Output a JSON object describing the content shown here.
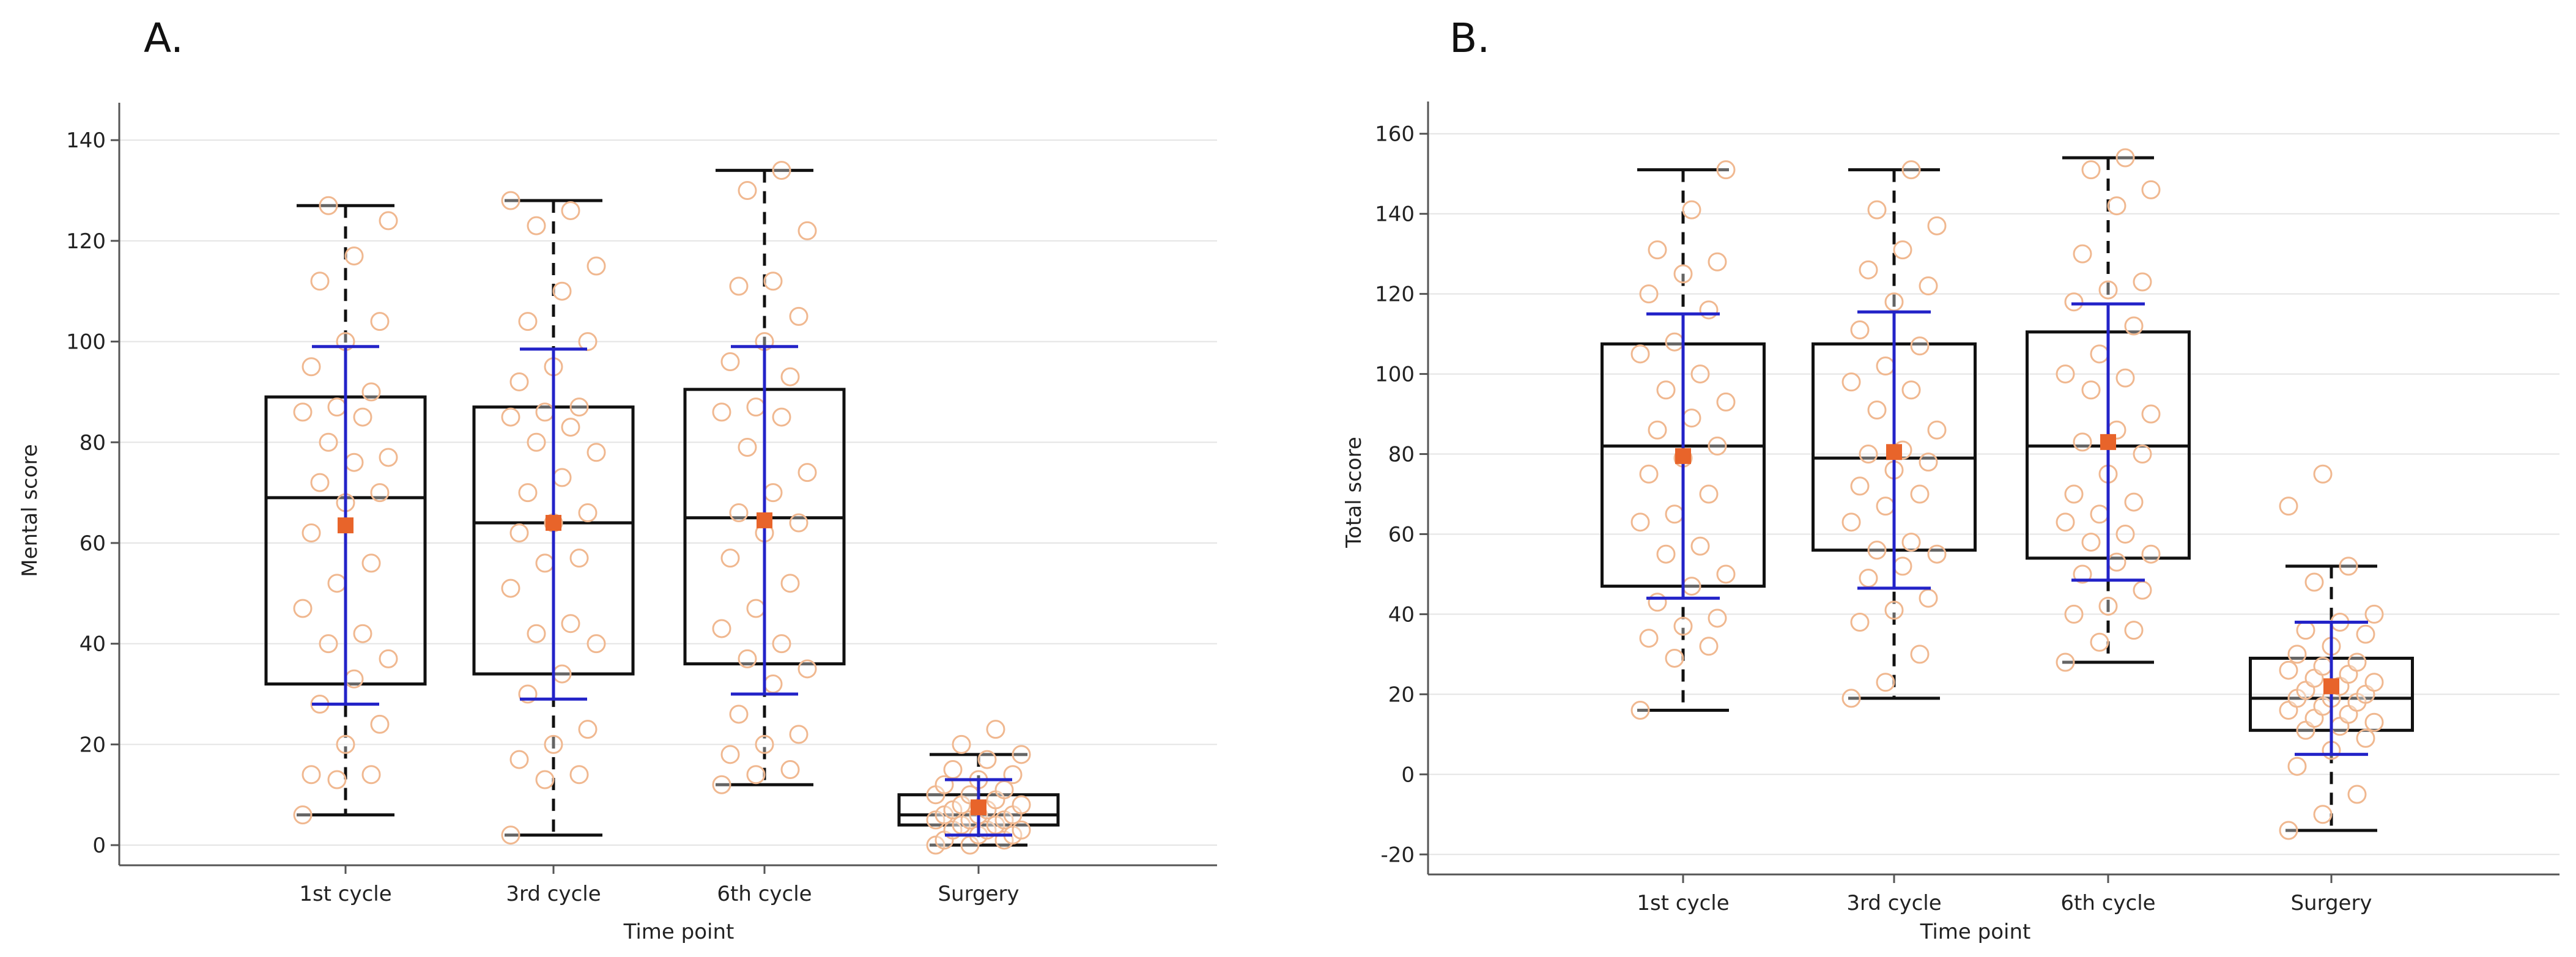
{
  "panels": [
    "A.",
    "B."
  ],
  "colors": {
    "box": "#111111",
    "sd_bar": "#2323c8",
    "point": "#f0b890",
    "mean": "#e8642a",
    "grid": "#e4e4e4"
  },
  "chart_data": [
    {
      "type": "box",
      "panel_label": "A.",
      "title": "",
      "xlabel": "Time point",
      "ylabel": "Mental score",
      "ylim": [
        -4,
        145
      ],
      "yticks": [
        0,
        20,
        40,
        60,
        80,
        100,
        120,
        140
      ],
      "grid": true,
      "categories": [
        "1st cycle",
        "3rd cycle",
        "6th cycle",
        "Surgery"
      ],
      "series": [
        {
          "name": "1st cycle",
          "min": 6,
          "q1": 32,
          "median": 69,
          "q3": 89,
          "max": 127,
          "mean": 63.5,
          "sd_low": 28,
          "sd_high": 99,
          "points": [
            6,
            13,
            14,
            14,
            20,
            24,
            28,
            33,
            37,
            40,
            42,
            47,
            52,
            56,
            62,
            68,
            70,
            72,
            76,
            77,
            80,
            85,
            86,
            87,
            90,
            95,
            100,
            104,
            112,
            117,
            124,
            127
          ]
        },
        {
          "name": "3rd cycle",
          "min": 2,
          "q1": 34,
          "median": 64,
          "q3": 87,
          "max": 128,
          "mean": 64,
          "sd_low": 29,
          "sd_high": 98.5,
          "points": [
            2,
            13,
            14,
            17,
            20,
            23,
            30,
            34,
            40,
            42,
            44,
            51,
            56,
            57,
            62,
            64,
            66,
            70,
            73,
            78,
            80,
            83,
            85,
            86,
            87,
            92,
            95,
            100,
            104,
            110,
            115,
            123,
            126,
            128
          ]
        },
        {
          "name": "6th cycle",
          "min": 12,
          "q1": 36,
          "median": 65,
          "q3": 90.5,
          "max": 134,
          "mean": 64.5,
          "sd_low": 30,
          "sd_high": 99,
          "points": [
            12,
            14,
            15,
            18,
            20,
            22,
            26,
            32,
            35,
            37,
            40,
            43,
            47,
            52,
            57,
            62,
            64,
            66,
            70,
            74,
            79,
            85,
            86,
            87,
            93,
            96,
            100,
            105,
            111,
            112,
            122,
            130,
            134
          ]
        },
        {
          "name": "Surgery",
          "min": 0,
          "q1": 4,
          "median": 6,
          "q3": 10,
          "max": 18,
          "mean": 7.5,
          "sd_low": 2,
          "sd_high": 13,
          "points": [
            0,
            0,
            1,
            1,
            2,
            2,
            3,
            3,
            3,
            4,
            4,
            5,
            5,
            5,
            6,
            6,
            6,
            7,
            7,
            8,
            8,
            9,
            10,
            10,
            11,
            12,
            13,
            14,
            15,
            17,
            18,
            20,
            23
          ]
        }
      ]
    },
    {
      "type": "box",
      "panel_label": "B.",
      "title": "",
      "xlabel": "Time point",
      "ylabel": "Total score",
      "ylim": [
        -25,
        165
      ],
      "yticks": [
        -20,
        0,
        20,
        40,
        60,
        80,
        100,
        120,
        140,
        160
      ],
      "grid": true,
      "categories": [
        "1st cycle",
        "3rd cycle",
        "6th cycle",
        "Surgery"
      ],
      "series": [
        {
          "name": "1st cycle",
          "min": 16,
          "q1": 47,
          "median": 82,
          "q3": 107.5,
          "max": 151,
          "mean": 79.5,
          "sd_low": 44,
          "sd_high": 115,
          "points": [
            16,
            29,
            32,
            34,
            37,
            39,
            43,
            47,
            50,
            55,
            57,
            63,
            65,
            70,
            75,
            79,
            82,
            86,
            89,
            93,
            96,
            100,
            105,
            108,
            116,
            120,
            125,
            128,
            131,
            141,
            151
          ]
        },
        {
          "name": "3rd cycle",
          "min": 19,
          "q1": 56,
          "median": 79,
          "q3": 107.5,
          "max": 151,
          "mean": 80.5,
          "sd_low": 46.5,
          "sd_high": 115.5,
          "points": [
            19,
            23,
            30,
            38,
            41,
            44,
            49,
            52,
            55,
            56,
            58,
            63,
            67,
            70,
            72,
            76,
            78,
            80,
            81,
            86,
            91,
            96,
            98,
            102,
            107,
            111,
            118,
            122,
            126,
            131,
            137,
            141,
            151
          ]
        },
        {
          "name": "6th cycle",
          "min": 28,
          "q1": 54,
          "median": 82,
          "q3": 110.5,
          "max": 154,
          "mean": 83,
          "sd_low": 48.5,
          "sd_high": 117.5,
          "points": [
            28,
            33,
            36,
            40,
            42,
            46,
            50,
            53,
            55,
            58,
            60,
            63,
            65,
            68,
            70,
            75,
            80,
            83,
            86,
            90,
            96,
            99,
            100,
            105,
            112,
            118,
            121,
            123,
            130,
            142,
            146,
            151,
            154
          ]
        },
        {
          "name": "Surgery",
          "min": -14,
          "q1": 11,
          "median": 19,
          "q3": 29,
          "max": 52,
          "mean": 22,
          "sd_low": 5,
          "sd_high": 38,
          "points": [
            -14,
            -10,
            -5,
            2,
            6,
            9,
            11,
            12,
            13,
            14,
            15,
            16,
            17,
            18,
            19,
            19,
            20,
            21,
            22,
            23,
            24,
            25,
            26,
            27,
            28,
            30,
            32,
            35,
            36,
            38,
            40,
            48,
            52,
            67,
            75
          ]
        }
      ]
    }
  ]
}
